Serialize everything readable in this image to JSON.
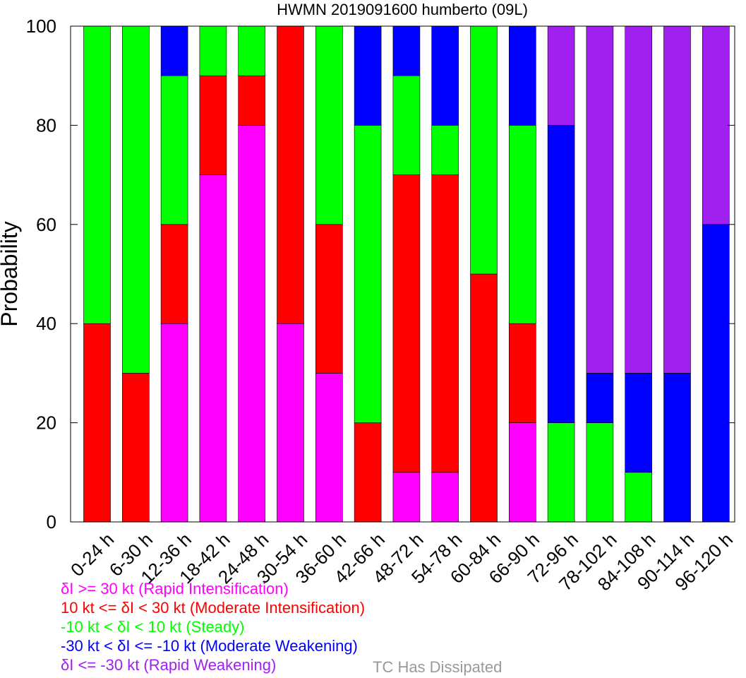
{
  "chart_data": {
    "type": "bar",
    "stacked": true,
    "title": "HWMN 2019091600 humberto (09L)",
    "xlabel": "",
    "ylabel": "Probability",
    "ylim": [
      0,
      100
    ],
    "yticks": [
      0,
      20,
      40,
      60,
      80,
      100
    ],
    "categories": [
      "0-24 h",
      "6-30 h",
      "12-36 h",
      "18-42 h",
      "24-48 h",
      "30-54 h",
      "36-60 h",
      "42-66 h",
      "48-72 h",
      "54-78 h",
      "60-84 h",
      "66-90 h",
      "72-96 h",
      "78-102 h",
      "84-108 h",
      "90-114 h",
      "96-120 h"
    ],
    "series": [
      {
        "name": "δI >= 30 kt (Rapid Intensification)",
        "color": "#ff00ff",
        "values": [
          0,
          0,
          40,
          70,
          80,
          40,
          30,
          0,
          10,
          10,
          0,
          20,
          0,
          0,
          0,
          0,
          0
        ]
      },
      {
        "name": "10 kt <= δI < 30 kt (Moderate Intensification)",
        "color": "#ff0000",
        "values": [
          40,
          30,
          20,
          20,
          10,
          60,
          30,
          20,
          60,
          60,
          50,
          20,
          0,
          0,
          0,
          0,
          0
        ]
      },
      {
        "name": "-10 kt < δI < 10 kt (Steady)",
        "color": "#00ff00",
        "values": [
          60,
          70,
          30,
          10,
          10,
          0,
          40,
          60,
          20,
          10,
          50,
          40,
          20,
          20,
          10,
          0,
          0
        ]
      },
      {
        "name": "-30 kt < δI <= -10 kt (Moderate Weakening)",
        "color": "#0000ff",
        "values": [
          0,
          0,
          10,
          0,
          0,
          0,
          0,
          20,
          10,
          20,
          0,
          20,
          60,
          10,
          20,
          30,
          60
        ]
      },
      {
        "name": "δI <= -30 kt (Rapid Weakening)",
        "color": "#a020f0",
        "values": [
          0,
          0,
          0,
          0,
          0,
          0,
          0,
          0,
          0,
          0,
          0,
          0,
          20,
          70,
          70,
          70,
          40
        ]
      }
    ],
    "extra_legend": {
      "label": "TC Has Dissipated",
      "color": "#999999"
    },
    "grid": false
  }
}
